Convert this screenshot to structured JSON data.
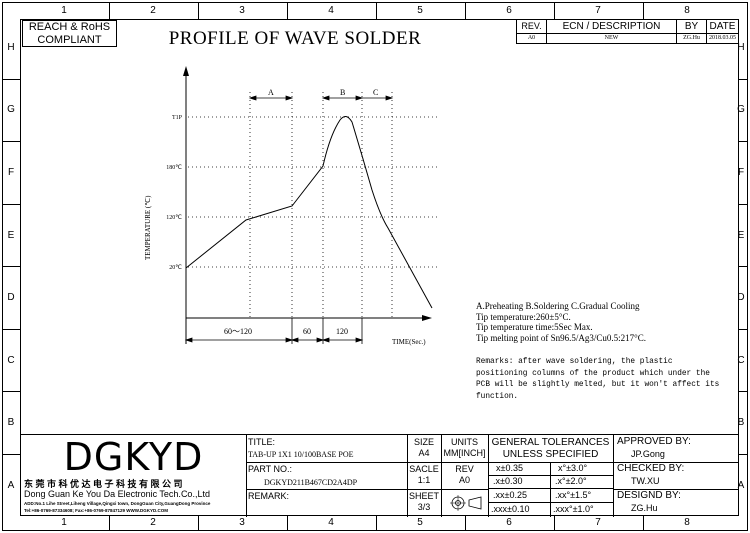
{
  "compliance": {
    "line1": "REACH & RoHS",
    "line2": "COMPLIANT"
  },
  "title": "PROFILE OF WAVE SOLDER",
  "columns": [
    "1",
    "2",
    "3",
    "4",
    "5",
    "6",
    "7",
    "8"
  ],
  "rows": [
    "H",
    "G",
    "F",
    "E",
    "D",
    "C",
    "B",
    "A"
  ],
  "revision": {
    "headers": {
      "rev": "REV.",
      "ecn": "ECN / DESCRIPTION",
      "by": "BY",
      "date": "DATE"
    },
    "entry": {
      "rev": "A0",
      "ecn": "NEW",
      "by": "ZG.Hu",
      "date": "2018.03.05"
    }
  },
  "chart_data": {
    "type": "line",
    "ylabel": "TEMPERATURE (℃)",
    "xlabel": "TIME(Sec.)",
    "y_ticks": [
      "20℃",
      "120℃",
      "180℃",
      "T1P"
    ],
    "zones": [
      "A",
      "B",
      "C"
    ],
    "time_segments": [
      "60～120",
      "60",
      "120"
    ]
  },
  "notes": {
    "lines": [
      "A.Preheating  B.Soldering  C.Gradual Cooling",
      "Tip temperature:260±5°C.",
      "Tip temperature time:5Sec Max.",
      "Tip melting point of Sn96.5/Ag3/Cu0.5:217°C."
    ],
    "remarks": [
      "Remarks: after wave soldering, the plastic",
      "positioning columns of the product  which under the",
      "PCB will be slightly melted, but it won't affect its",
      "function."
    ]
  },
  "company": {
    "logo": "DGKYD",
    "cn_name": "东 莞 市 科 优 达 电 子 科 技 有 限 公 司",
    "en_name": "Dong Guan Ke You Da Electronic Tech.Co.,Ltd",
    "address": "ADD:No.1 Lihe Street,Liheng Village,Qingxi town, DongGuan City,GuangDong Province",
    "contact": "Tel:+86-0769-87334608; Fax:+86-0769-87847129  WWW.DGKYD.COM"
  },
  "titleblock": {
    "title_label": "TITLE:",
    "title_value": "TAB-UP 1X1 10/100BASE POE",
    "part_label": "PART NO.:",
    "part_value": "DGKYD211B467CD2A4DP",
    "remark_label": "REMARK:",
    "size_label": "SIZE",
    "size_value": "A4",
    "scale_label": "SACLE",
    "scale_value": "1:1",
    "sheet_label": "SHEET",
    "sheet_value": "3/3",
    "units_label": "UNITS",
    "units_value": "MM[INCH]",
    "rev_label": "REV",
    "rev_value": "A0",
    "tol_line1": "GENERAL TOLERANCES",
    "tol_line2": "UNLESS SPECIFIED",
    "tolerances": [
      [
        "x±0.35",
        "x°±3.0°"
      ],
      [
        ".x±0.30",
        ".x°±2.0°"
      ],
      [
        ".xx±0.25",
        ".xx°±1.5°"
      ],
      [
        ".xxx±0.10",
        ".xxx°±1.0°"
      ]
    ],
    "approved_label": "APPROVED BY:",
    "approved_value": "JP.Gong",
    "checked_label": "CHECKED BY:",
    "checked_value": "TW.XU",
    "designed_label": "DESIGND BY:",
    "designed_value": "ZG.Hu"
  }
}
